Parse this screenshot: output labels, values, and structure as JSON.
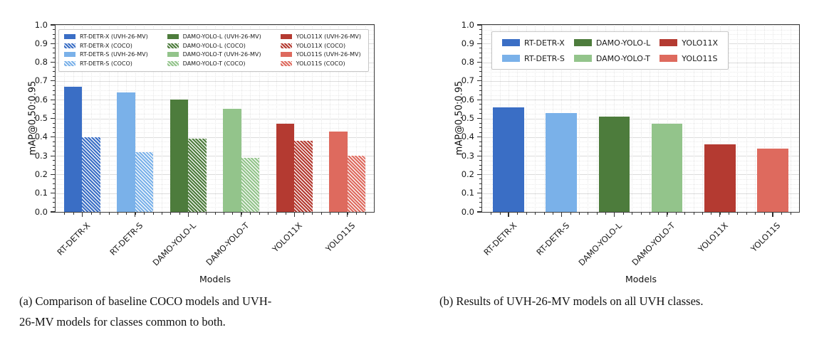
{
  "captions": {
    "a_line1": "(a) Comparison of baseline COCO models and UVH-",
    "a_line2": "26-MV models for classes common to both.",
    "b": "(b) Results of UVH-26-MV models on all UVH classes."
  },
  "palette": {
    "dark_blue": "#3a6ec5",
    "light_blue": "#7ab1e9",
    "dark_green": "#4d7c3c",
    "light_green": "#93c48b",
    "dark_red": "#b43a31",
    "light_red": "#de6a5e"
  },
  "chart_data": [
    {
      "type": "bar",
      "panel": "a",
      "xlabel": "Models",
      "ylabel": "mAP@0.50:0.95",
      "ylim": [
        0.0,
        1.0
      ],
      "ytick_labels": [
        "0.0",
        "0.1",
        "0.2",
        "0.3",
        "0.4",
        "0.5",
        "0.6",
        "0.7",
        "0.8",
        "0.9",
        "1.0"
      ],
      "grid": true,
      "categories": [
        "RT-DETR-X",
        "RT-DETR-S",
        "DAMO-YOLO-L",
        "DAMO-YOLO-T",
        "YOLO11X",
        "YOLO11S"
      ],
      "category_colors": [
        "#3a6ec5",
        "#7ab1e9",
        "#4d7c3c",
        "#93c48b",
        "#b43a31",
        "#de6a5e"
      ],
      "series": [
        {
          "name": "UVH-26-MV",
          "hatch": false,
          "values": [
            0.67,
            0.64,
            0.6,
            0.55,
            0.47,
            0.43
          ]
        },
        {
          "name": "COCO",
          "hatch": true,
          "values": [
            0.4,
            0.32,
            0.39,
            0.29,
            0.38,
            0.3
          ]
        }
      ],
      "legend": {
        "position": "upper center",
        "rows": 4,
        "entries": [
          {
            "label": "RT-DETR-X (UVH-26-MV)",
            "color": "#3a6ec5",
            "hatch": false
          },
          {
            "label": "RT-DETR-X (COCO)",
            "color": "#3a6ec5",
            "hatch": true
          },
          {
            "label": "RT-DETR-S (UVH-26-MV)",
            "color": "#7ab1e9",
            "hatch": false
          },
          {
            "label": "RT-DETR-S (COCO)",
            "color": "#7ab1e9",
            "hatch": true
          },
          {
            "label": "DAMO-YOLO-L (UVH-26-MV)",
            "color": "#4d7c3c",
            "hatch": false
          },
          {
            "label": "DAMO-YOLO-L (COCO)",
            "color": "#4d7c3c",
            "hatch": true
          },
          {
            "label": "DAMO-YOLO-T (UVH-26-MV)",
            "color": "#93c48b",
            "hatch": false
          },
          {
            "label": "DAMO-YOLO-T (COCO)",
            "color": "#93c48b",
            "hatch": true
          },
          {
            "label": "YOLO11X (UVH-26-MV)",
            "color": "#b43a31",
            "hatch": false
          },
          {
            "label": "YOLO11X (COCO)",
            "color": "#b43a31",
            "hatch": true
          },
          {
            "label": "YOLO11S (UVH-26-MV)",
            "color": "#de6a5e",
            "hatch": false
          },
          {
            "label": "YOLO11S (COCO)",
            "color": "#de6a5e",
            "hatch": true
          }
        ]
      }
    },
    {
      "type": "bar",
      "panel": "b",
      "xlabel": "Models",
      "ylabel": "mAP@0.50:0.95",
      "ylim": [
        0.0,
        1.0
      ],
      "ytick_labels": [
        "0.0",
        "0.1",
        "0.2",
        "0.3",
        "0.4",
        "0.5",
        "0.6",
        "0.7",
        "0.8",
        "0.9",
        "1.0"
      ],
      "grid": true,
      "categories": [
        "RT-DETR-X",
        "RT-DETR-S",
        "DAMO-YOLO-L",
        "DAMO-YOLO-T",
        "YOLO11X",
        "YOLO11S"
      ],
      "category_colors": [
        "#3a6ec5",
        "#7ab1e9",
        "#4d7c3c",
        "#93c48b",
        "#b43a31",
        "#de6a5e"
      ],
      "series": [
        {
          "name": "UVH-26-MV",
          "hatch": false,
          "values": [
            0.56,
            0.53,
            0.51,
            0.47,
            0.36,
            0.34
          ]
        }
      ],
      "legend": {
        "position": "upper center",
        "rows": 2,
        "entries": [
          {
            "label": "RT-DETR-X",
            "color": "#3a6ec5",
            "hatch": false
          },
          {
            "label": "RT-DETR-S",
            "color": "#7ab1e9",
            "hatch": false
          },
          {
            "label": "DAMO-YOLO-L",
            "color": "#4d7c3c",
            "hatch": false
          },
          {
            "label": "DAMO-YOLO-T",
            "color": "#93c48b",
            "hatch": false
          },
          {
            "label": "YOLO11X",
            "color": "#b43a31",
            "hatch": false
          },
          {
            "label": "YOLO11S",
            "color": "#de6a5e",
            "hatch": false
          }
        ]
      }
    }
  ]
}
